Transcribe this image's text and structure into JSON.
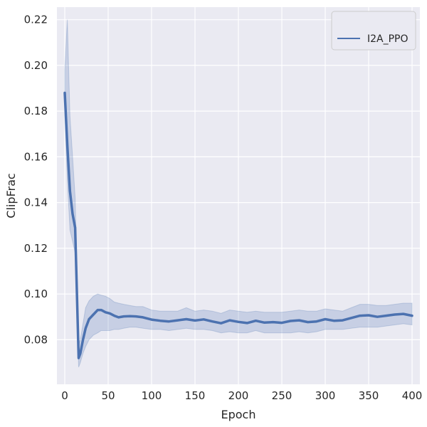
{
  "colors": {
    "plot_background": "#eaeaf2",
    "grid": "#ffffff",
    "line": "#4c72b0",
    "band": "#4c72b0",
    "legend_bg": "#eaeaf2",
    "legend_border": "#cccccc"
  },
  "chart_data": {
    "type": "line",
    "title": "",
    "xlabel": "Epoch",
    "ylabel": "ClipFrac",
    "xlim": [
      -9,
      409
    ],
    "ylim": [
      0.0605,
      0.2255
    ],
    "xticks": [
      0,
      50,
      100,
      150,
      200,
      250,
      300,
      350,
      400
    ],
    "yticks": [
      0.08,
      0.1,
      0.12,
      0.14,
      0.16,
      0.18,
      0.2,
      0.22
    ],
    "ytick_labels": [
      "0.08",
      "0.10",
      "0.12",
      "0.14",
      "0.16",
      "0.18",
      "0.20",
      "0.22"
    ],
    "grid": true,
    "legend": {
      "placement": "top-right",
      "entries": [
        "I2A_PPO"
      ]
    },
    "series": [
      {
        "name": "I2A_PPO",
        "x": [
          0,
          3,
          6,
          9,
          12,
          14,
          16,
          18,
          21,
          24,
          28,
          33,
          38,
          42,
          47,
          52,
          57,
          62,
          68,
          75,
          82,
          90,
          100,
          110,
          120,
          130,
          140,
          150,
          160,
          170,
          180,
          190,
          200,
          210,
          220,
          230,
          240,
          250,
          260,
          270,
          280,
          290,
          300,
          310,
          320,
          330,
          340,
          350,
          360,
          370,
          380,
          390,
          400
        ],
        "y": [
          0.188,
          0.165,
          0.145,
          0.135,
          0.129,
          0.1,
          0.072,
          0.074,
          0.08,
          0.085,
          0.089,
          0.091,
          0.093,
          0.093,
          0.092,
          0.0915,
          0.0905,
          0.0898,
          0.0902,
          0.0903,
          0.0902,
          0.0898,
          0.0888,
          0.0883,
          0.088,
          0.0885,
          0.089,
          0.0884,
          0.0889,
          0.088,
          0.0872,
          0.0885,
          0.0878,
          0.0873,
          0.0883,
          0.0875,
          0.0877,
          0.0874,
          0.0882,
          0.0885,
          0.0877,
          0.088,
          0.089,
          0.0883,
          0.0885,
          0.0895,
          0.0905,
          0.0907,
          0.09,
          0.0905,
          0.091,
          0.0913,
          0.0905
        ],
        "lower": [
          0.178,
          0.15,
          0.128,
          0.123,
          0.118,
          0.09,
          0.068,
          0.07,
          0.074,
          0.077,
          0.08,
          0.082,
          0.083,
          0.084,
          0.084,
          0.084,
          0.0845,
          0.0845,
          0.085,
          0.0855,
          0.0855,
          0.085,
          0.0845,
          0.0845,
          0.084,
          0.0845,
          0.085,
          0.0845,
          0.0845,
          0.084,
          0.083,
          0.0835,
          0.083,
          0.083,
          0.084,
          0.083,
          0.083,
          0.083,
          0.083,
          0.0835,
          0.083,
          0.0835,
          0.0845,
          0.0845,
          0.0845,
          0.085,
          0.0855,
          0.0855,
          0.0855,
          0.086,
          0.0865,
          0.087,
          0.0865
        ],
        "upper": [
          0.198,
          0.22,
          0.178,
          0.16,
          0.142,
          0.112,
          0.078,
          0.08,
          0.087,
          0.094,
          0.097,
          0.099,
          0.1,
          0.0995,
          0.099,
          0.098,
          0.0965,
          0.096,
          0.0955,
          0.095,
          0.0945,
          0.0945,
          0.093,
          0.0925,
          0.0925,
          0.0925,
          0.094,
          0.0925,
          0.093,
          0.0925,
          0.0915,
          0.093,
          0.0925,
          0.092,
          0.0925,
          0.092,
          0.092,
          0.092,
          0.0925,
          0.093,
          0.0925,
          0.0925,
          0.0935,
          0.093,
          0.0925,
          0.094,
          0.0955,
          0.0955,
          0.095,
          0.095,
          0.0955,
          0.096,
          0.096
        ]
      }
    ]
  }
}
